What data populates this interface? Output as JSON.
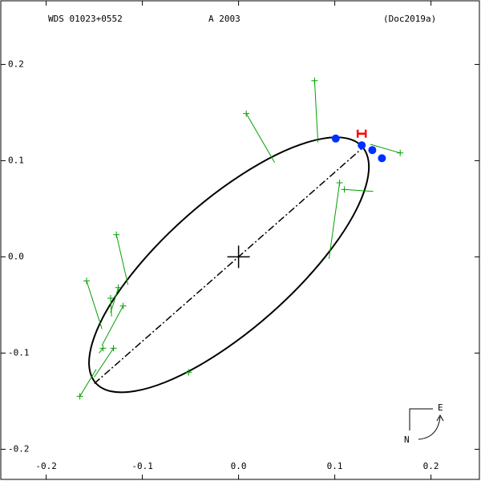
{
  "chart_data": {
    "type": "orbit",
    "title": "WDS 01023+0552",
    "subtitle": "A  2003",
    "source": "(Doc2019a)",
    "compass": {
      "east": "E",
      "north": "N"
    },
    "xlim": [
      -0.248,
      0.252
    ],
    "ylim": [
      -0.233,
      0.267
    ],
    "xticks": [
      -0.2,
      -0.1,
      {
        "value": 0,
        "label": "0.0"
      },
      0.1,
      0.2
    ],
    "yticks": [
      0.2,
      0.1,
      {
        "value": 0,
        "label": "0.0"
      },
      -0.1,
      -0.2
    ],
    "orbit": {
      "color": "#000000",
      "x": [
        0.1286,
        0.1125,
        0.0879,
        0.0567,
        0.021,
        -0.0168,
        -0.0542,
        -0.0886,
        -0.1176,
        -0.1393,
        -0.1521,
        -0.1553,
        -0.1486,
        -0.1325,
        -0.1079,
        -0.0767,
        -0.041,
        -0.0032,
        0.0342,
        0.0686,
        0.0976,
        0.1193,
        0.1321,
        0.1353
      ],
      "y": [
        0.1144,
        0.1232,
        0.123,
        0.1139,
        0.0964,
        0.0718,
        0.0417,
        0.0082,
        -0.0264,
        -0.0597,
        -0.0896,
        -0.1138,
        -0.131,
        -0.1398,
        -0.1396,
        -0.1305,
        -0.113,
        -0.0884,
        -0.0583,
        -0.0248,
        0.0098,
        0.0431,
        0.073,
        0.0972
      ]
    },
    "apsides": {
      "x": [
        -0.15,
        0.128
      ],
      "y": [
        -0.1317,
        0.1125
      ]
    },
    "primary": {
      "x": 0,
      "y": 0
    },
    "observations": {
      "color": "#00a000",
      "x": [
        0.079,
        0.008,
        0.168,
        0.105,
        0.11,
        -0.127,
        -0.158,
        -0.125,
        -0.133,
        -0.12,
        -0.141,
        -0.13,
        -0.165,
        -0.052
      ],
      "y": [
        0.183,
        0.149,
        0.108,
        0.077,
        0.07,
        0.023,
        -0.025,
        -0.032,
        -0.043,
        -0.051,
        -0.095,
        -0.095,
        -0.145,
        -0.12
      ],
      "fit_x": [
        0.0825,
        0.0375,
        0.137,
        0.094,
        0.14,
        -0.115,
        -0.142,
        -0.133,
        -0.132,
        -0.142,
        -0.145,
        -0.15,
        -0.148,
        -0.052
      ],
      "fit_y": [
        0.119,
        0.098,
        0.117,
        -0.002,
        0.068,
        -0.029,
        -0.075,
        -0.058,
        -0.062,
        -0.092,
        -0.1,
        -0.125,
        -0.117,
        -0.123
      ]
    },
    "measures": {
      "color": "#0030ff",
      "x": [
        0.101,
        0.128,
        0.139,
        0.149
      ],
      "y": [
        0.123,
        0.116,
        0.111,
        0.1025
      ]
    },
    "highlight": {
      "color": "#ff0000",
      "x": 0.128,
      "y": 0.128
    }
  }
}
